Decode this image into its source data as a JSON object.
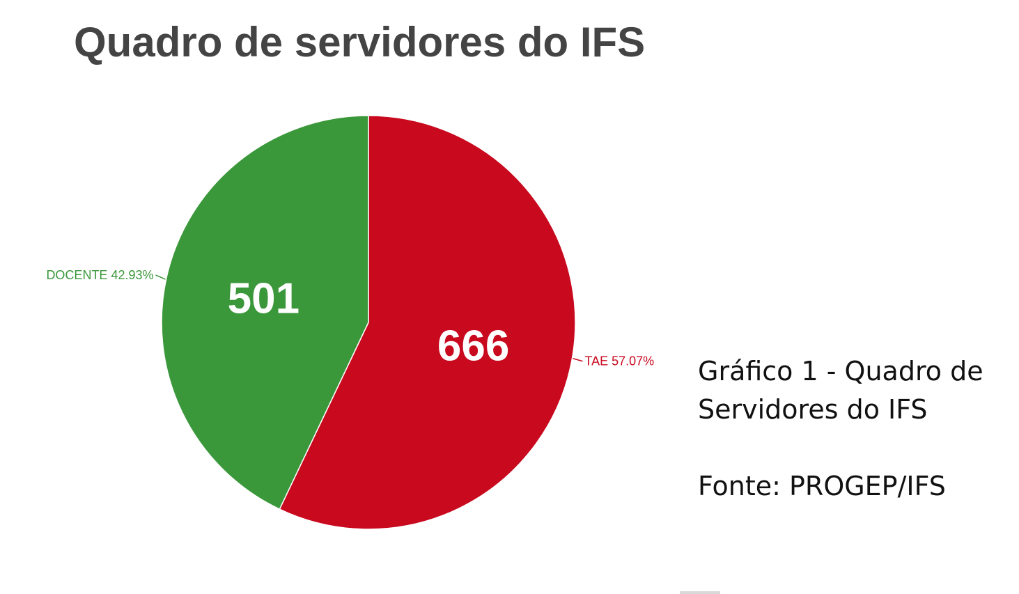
{
  "chart_data": {
    "type": "pie",
    "title": "Quadro de servidores do IFS",
    "slices": [
      {
        "label": "TAE",
        "value": 666,
        "percent_label": "57.07%",
        "color": "#c8091e"
      },
      {
        "label": "DOCENTE",
        "value": 501,
        "percent_label": "42.93%",
        "color": "#3a973a"
      }
    ],
    "start_angle_deg": 0,
    "direction": "clockwise"
  },
  "caption": {
    "line1": "Gráfico 1 - Quadro de",
    "line2": "Servidores do IFS",
    "source": "Fonte: PROGEP/IFS"
  },
  "colors": {
    "title": "#444444",
    "slice_value_text": "#ffffff"
  }
}
